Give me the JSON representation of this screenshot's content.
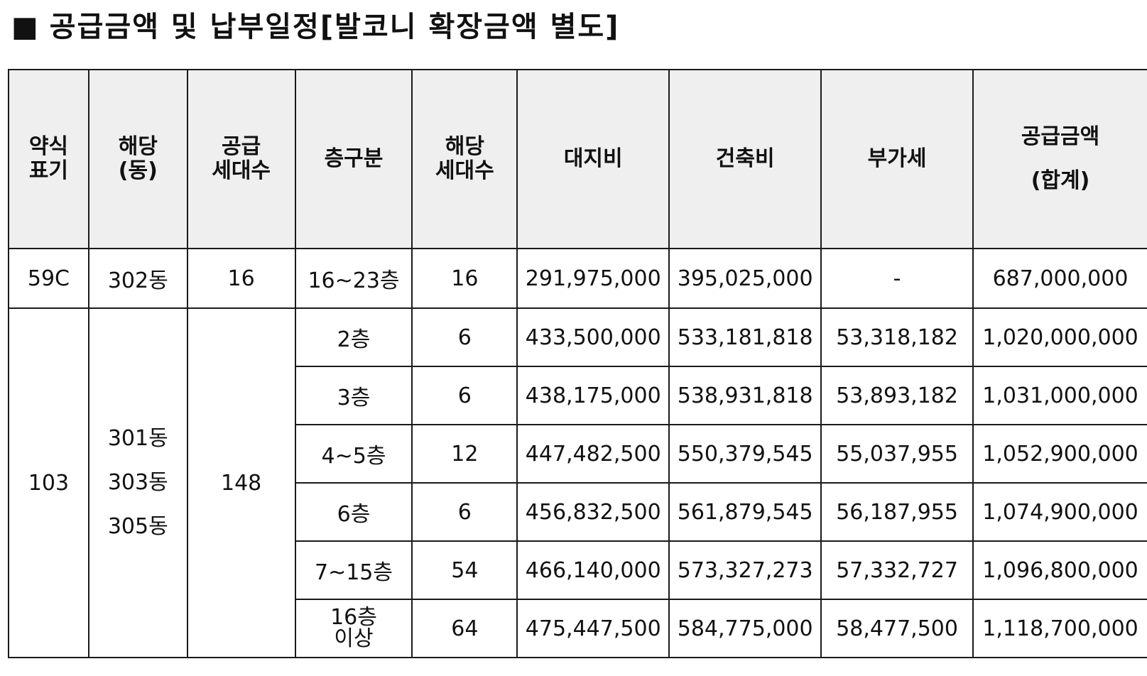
{
  "page": {
    "title_mark": "■",
    "title": "공급금액 및 납부일정[발코니 확장금액 별도]"
  },
  "table": {
    "headers": {
      "type_line1": "약식",
      "type_line2": "표기",
      "dong_line1": "해당",
      "dong_line2": "(동)",
      "supply_line1": "공급",
      "supply_line2": "세대수",
      "floor": "층구분",
      "units_line1": "해당",
      "units_line2": "세대수",
      "land": "대지비",
      "building": "건축비",
      "vat": "부가세",
      "sum_line1": "공급금액",
      "sum_line2": "(합계)"
    },
    "group1": {
      "type": "59C",
      "dong": "302동",
      "supply_units": "16",
      "rows": [
        {
          "floor": "16~23층",
          "units": "16",
          "land": "291,975,000",
          "building": "395,025,000",
          "vat": "-",
          "total": "687,000,000"
        }
      ]
    },
    "group2": {
      "type": "103",
      "dongs": [
        "301동",
        "303동",
        "305동"
      ],
      "supply_units": "148",
      "rows": [
        {
          "floor": "2층",
          "units": "6",
          "land": "433,500,000",
          "building": "533,181,818",
          "vat": "53,318,182",
          "total": "1,020,000,000"
        },
        {
          "floor": "3층",
          "units": "6",
          "land": "438,175,000",
          "building": "538,931,818",
          "vat": "53,893,182",
          "total": "1,031,000,000"
        },
        {
          "floor": "4~5층",
          "units": "12",
          "land": "447,482,500",
          "building": "550,379,545",
          "vat": "55,037,955",
          "total": "1,052,900,000"
        },
        {
          "floor": "6층",
          "units": "6",
          "land": "456,832,500",
          "building": "561,879,545",
          "vat": "56,187,955",
          "total": "1,074,900,000"
        },
        {
          "floor": "7~15층",
          "units": "54",
          "land": "466,140,000",
          "building": "573,327,273",
          "vat": "57,332,727",
          "total": "1,096,800,000"
        },
        {
          "floor_line1": "16층",
          "floor_line2": "이상",
          "units": "64",
          "land": "475,447,500",
          "building": "584,775,000",
          "vat": "58,477,500",
          "total": "1,118,700,000"
        }
      ]
    }
  }
}
